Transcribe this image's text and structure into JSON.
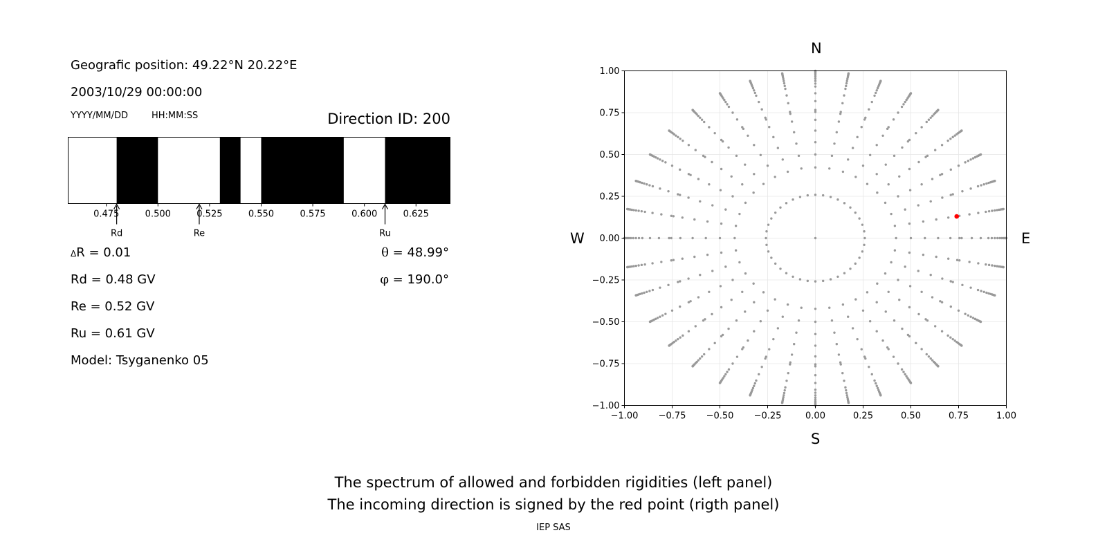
{
  "left_panel": {
    "position_text": "Geografic position: 49.22°N 20.22°E",
    "datetime_text": "2003/10/29 00:00:00",
    "date_format_label": "YYYY/MM/DD",
    "time_format_label": "HH:MM:SS",
    "direction_text": "Direction ID: 200",
    "delta_r_symbol": "Δ",
    "delta_r_text": "R = 0.01",
    "rd_text": "Rd = 0.48 GV",
    "re_text": "Re = 0.52 GV",
    "ru_text": "Ru = 0.61 GV",
    "model_text": "Model: Tsyganenko 05",
    "theta_symbol": "θ",
    "theta_text": " = 48.99°",
    "phi_symbol": "φ",
    "phi_text": " = 190.0°"
  },
  "compass": {
    "north": "N",
    "south": "S",
    "west": "W",
    "east": "E"
  },
  "caption": {
    "line1": "The spectrum of allowed and forbidden rigidities (left panel)",
    "line2": "The incoming direction is signed by the red point (rigth panel)"
  },
  "footer": "IEP SAS",
  "colors": {
    "allowed": "#ffffff",
    "forbidden": "#000000",
    "grid_points": "#999999",
    "incoming_point": "#ff0000"
  },
  "chart_data": [
    {
      "type": "bar",
      "subtype": "rigidity-spectrum",
      "xlim": [
        0.4565,
        0.6415
      ],
      "xticks": [
        0.475,
        0.5,
        0.525,
        0.55,
        0.575,
        0.6,
        0.625
      ],
      "xtick_labels": [
        "0.475",
        "0.500",
        "0.525",
        "0.550",
        "0.575",
        "0.600",
        "0.625"
      ],
      "forbidden_intervals": [
        [
          0.48,
          0.5
        ],
        [
          0.53,
          0.54
        ],
        [
          0.55,
          0.59
        ],
        [
          0.61,
          0.6415
        ]
      ],
      "markers": [
        {
          "label": "Rd",
          "value": 0.48
        },
        {
          "label": "Re",
          "value": 0.52
        },
        {
          "label": "Ru",
          "value": 0.61
        }
      ]
    },
    {
      "type": "scatter",
      "xlim": [
        -1.0,
        1.0
      ],
      "ylim": [
        -1.0,
        1.0
      ],
      "xticks": [
        -1.0,
        -0.75,
        -0.5,
        -0.25,
        0.0,
        0.25,
        0.5,
        0.75,
        1.0
      ],
      "yticks": [
        -1.0,
        -0.75,
        -0.5,
        -0.25,
        0.0,
        0.25,
        0.5,
        0.75,
        1.0
      ],
      "xtick_labels": [
        "−1.00",
        "−0.75",
        "−0.50",
        "−0.25",
        "0.00",
        "0.25",
        "0.50",
        "0.75",
        "1.00"
      ],
      "ytick_labels": [
        "−1.00",
        "−0.75",
        "−0.50",
        "−0.25",
        "0.00",
        "0.25",
        "0.50",
        "0.75",
        "1.00"
      ],
      "grid": true,
      "zenith_angles_deg": [
        0,
        15,
        25,
        30,
        35,
        40,
        45,
        48.99,
        50,
        55,
        60,
        65,
        67.5,
        70,
        72.5,
        75,
        77.5,
        80,
        82.5,
        85,
        87.5,
        90
      ],
      "inner_ring_zenith_deg": 15,
      "inner_ring_points": 40,
      "azimuth_step_deg": 10,
      "highlight": {
        "theta_deg": 48.99,
        "phi_deg": 190.0,
        "x": 0.74,
        "y": 0.13
      }
    }
  ]
}
